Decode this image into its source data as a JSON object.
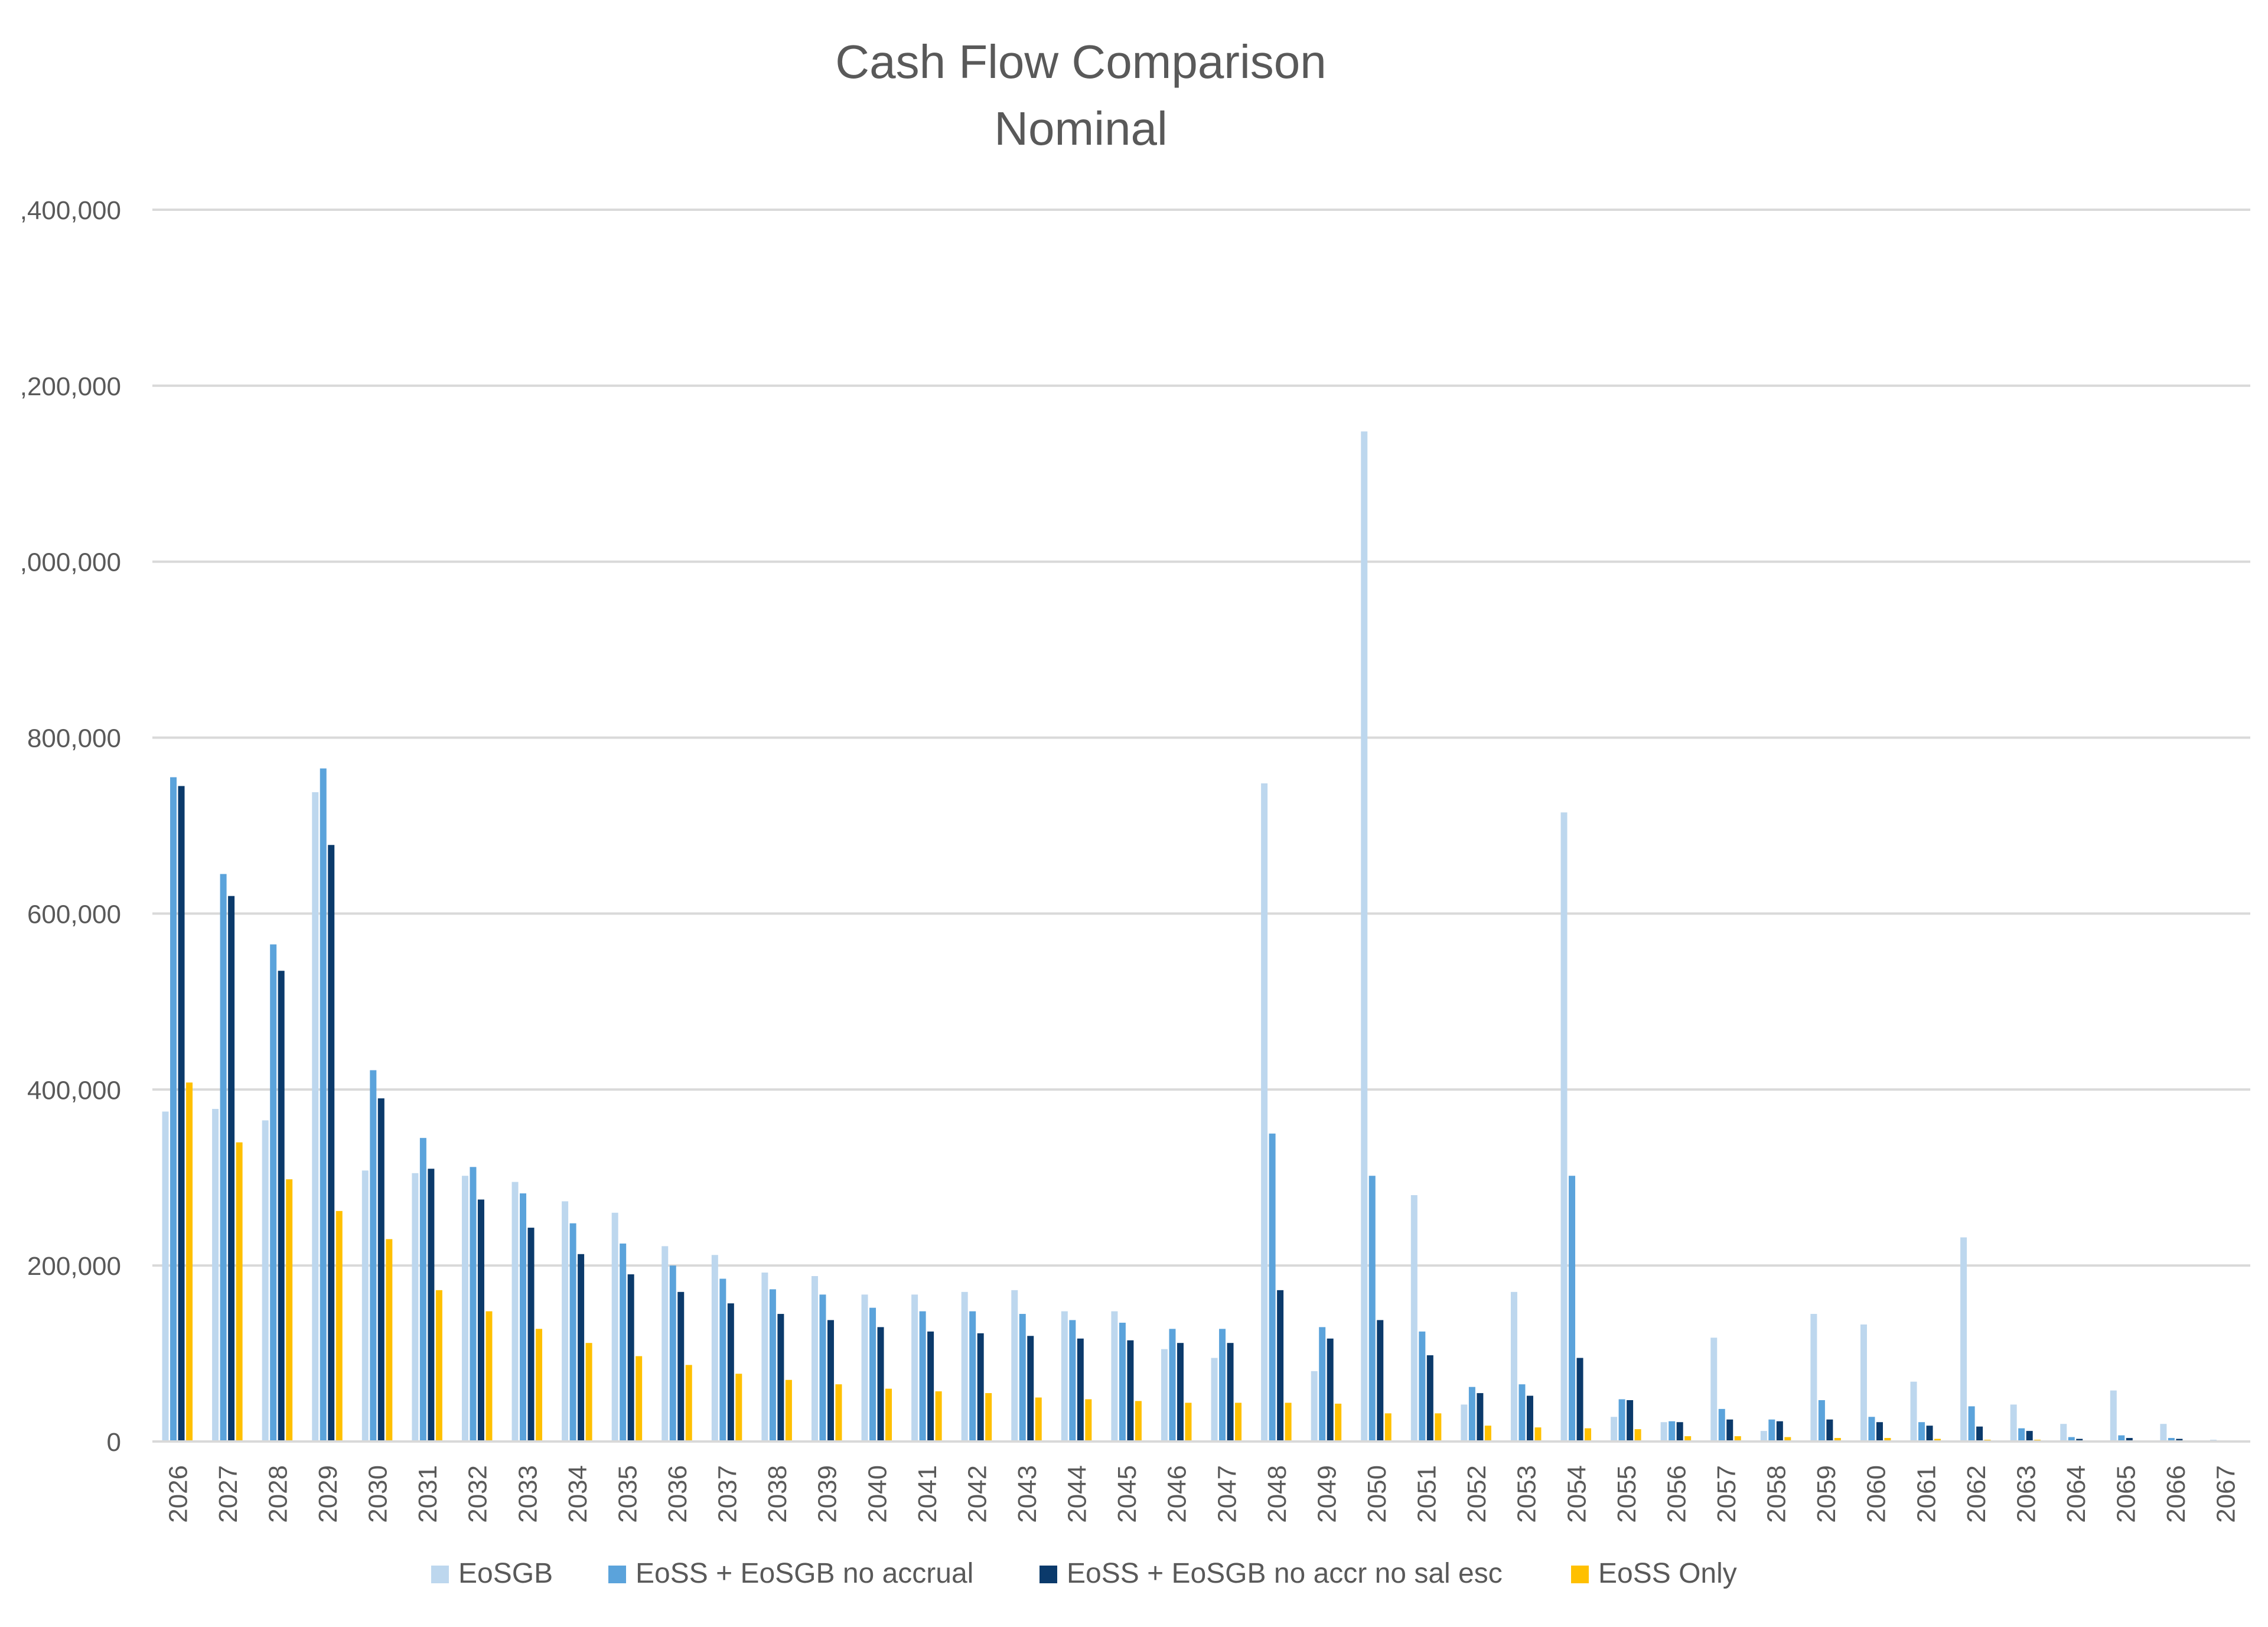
{
  "chart_data": {
    "type": "bar",
    "title": [
      "Cash Flow Comparison",
      "Nominal"
    ],
    "xlabel": "",
    "ylabel": "",
    "ylim": [
      0,
      1400000
    ],
    "y_ticks": [
      0,
      200000,
      400000,
      600000,
      800000,
      1000000,
      1200000,
      1400000
    ],
    "y_tick_labels": [
      "0",
      "200,000",
      "400,000",
      "600,000",
      "800,000",
      ",000,000",
      ",200,000",
      ",400,000"
    ],
    "grid": true,
    "legend_position": "bottom",
    "categories": [
      "2026",
      "2027",
      "2028",
      "2029",
      "2030",
      "2031",
      "2032",
      "2033",
      "2034",
      "2035",
      "2036",
      "2037",
      "2038",
      "2039",
      "2040",
      "2041",
      "2042",
      "2043",
      "2044",
      "2045",
      "2046",
      "2047",
      "2048",
      "2049",
      "2050",
      "2051",
      "2052",
      "2053",
      "2054",
      "2055",
      "2056",
      "2057",
      "2058",
      "2059",
      "2060",
      "2061",
      "2062",
      "2063",
      "2064",
      "2065",
      "2066",
      "2067"
    ],
    "series": [
      {
        "name": "EoSGB",
        "color": "#BDD7EE",
        "values": [
          375000,
          378000,
          365000,
          738000,
          308000,
          305000,
          302000,
          295000,
          273000,
          260000,
          222000,
          212000,
          192000,
          188000,
          167000,
          167000,
          170000,
          172000,
          148000,
          148000,
          105000,
          95000,
          748000,
          80000,
          1148000,
          280000,
          42000,
          170000,
          715000,
          28000,
          22000,
          118000,
          12000,
          145000,
          133000,
          68000,
          232000,
          42000,
          20000,
          58000,
          20000,
          2000
        ]
      },
      {
        "name": "EoSS + EoSGB no accrual",
        "color": "#5BA3DB",
        "values": [
          755000,
          645000,
          565000,
          765000,
          422000,
          345000,
          312000,
          282000,
          248000,
          225000,
          200000,
          185000,
          173000,
          167000,
          152000,
          148000,
          148000,
          145000,
          138000,
          135000,
          128000,
          128000,
          350000,
          130000,
          302000,
          125000,
          62000,
          65000,
          302000,
          48000,
          23000,
          37000,
          25000,
          47000,
          28000,
          22000,
          40000,
          15000,
          5000,
          7000,
          4000,
          1000
        ]
      },
      {
        "name": "EoSS + EoSGB no accr no sal esc",
        "color": "#0B3A6B",
        "values": [
          745000,
          620000,
          535000,
          678000,
          390000,
          310000,
          275000,
          243000,
          213000,
          190000,
          170000,
          157000,
          145000,
          138000,
          130000,
          125000,
          123000,
          120000,
          117000,
          115000,
          112000,
          112000,
          172000,
          117000,
          138000,
          98000,
          55000,
          52000,
          95000,
          47000,
          22000,
          25000,
          23000,
          25000,
          22000,
          18000,
          17000,
          12000,
          3000,
          4000,
          3000,
          0
        ]
      },
      {
        "name": "EoSS Only",
        "color": "#FFC000",
        "values": [
          408000,
          340000,
          298000,
          262000,
          230000,
          172000,
          148000,
          128000,
          112000,
          97000,
          87000,
          77000,
          70000,
          65000,
          60000,
          57000,
          55000,
          50000,
          48000,
          46000,
          44000,
          44000,
          44000,
          43000,
          32000,
          32000,
          18000,
          16000,
          15000,
          14000,
          6000,
          6000,
          5000,
          4000,
          4000,
          3000,
          2000,
          2000,
          1000,
          1000,
          1000,
          0
        ]
      }
    ]
  }
}
